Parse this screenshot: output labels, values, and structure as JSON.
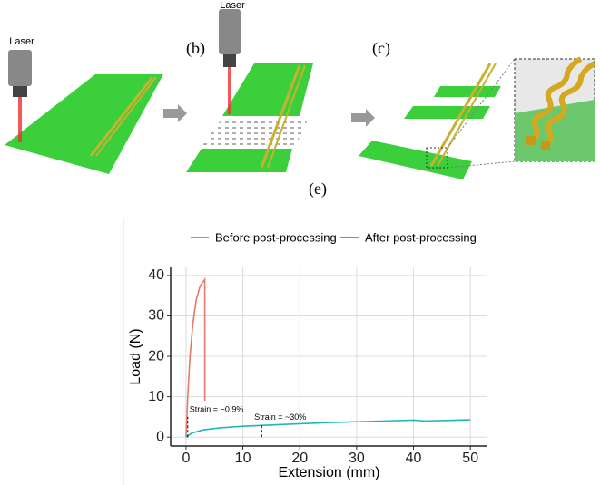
{
  "figure_labels": {
    "laser_a": "Laser",
    "laser_b": "Laser",
    "panel_b": "(b)",
    "panel_c": "(c)",
    "panel_e": "(e)"
  },
  "chart_data": {
    "type": "line",
    "x_label": "Extension (mm)",
    "y_label": "Load (N)",
    "xlim": [
      -2.7,
      53
    ],
    "ylim": [
      -2.2,
      42
    ],
    "xticks": [
      0,
      10,
      20,
      30,
      40,
      50
    ],
    "yticks": [
      0,
      10,
      20,
      30,
      40
    ],
    "grid": true,
    "legend": "top",
    "series": [
      {
        "name": "Before post-processing",
        "color": "#e8776b",
        "x": [
          0,
          0.3,
          0.7,
          1.2,
          1.8,
          2.5,
          3.3,
          3.3
        ],
        "values": [
          0,
          10,
          20,
          28,
          34,
          37.5,
          39,
          9
        ]
      },
      {
        "name": "After post-processing",
        "color": "#1fb8b8",
        "x": [
          0,
          1,
          3,
          6,
          10,
          15,
          20,
          25,
          30,
          35,
          40,
          42,
          45,
          50
        ],
        "values": [
          0,
          1,
          1.8,
          2.3,
          2.7,
          3.0,
          3.3,
          3.6,
          3.8,
          4.0,
          4.2,
          4.0,
          4.1,
          4.3
        ]
      }
    ],
    "annotations": [
      {
        "text": "Strain = ~0.9%",
        "x": 0.3,
        "y": 5
      },
      {
        "text": "Strain = ~30%",
        "x": 13.3,
        "y": 3
      }
    ]
  }
}
